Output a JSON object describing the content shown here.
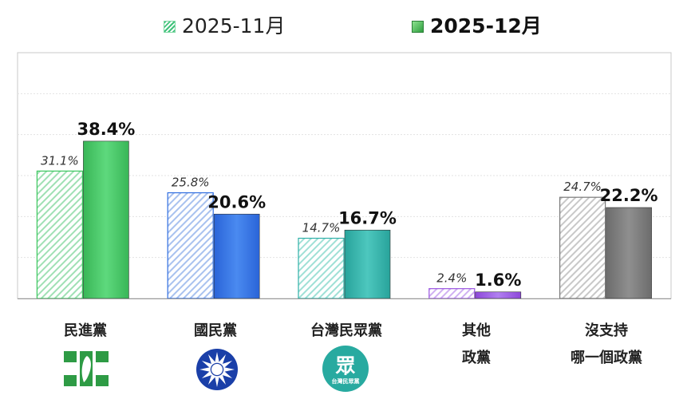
{
  "chart_data": {
    "type": "bar",
    "categories": [
      "民進黨",
      "國民黨",
      "台灣民眾黨",
      "其他\n政黨",
      "沒支持\n哪一個政黨"
    ],
    "category_lines": [
      [
        "民進黨"
      ],
      [
        "國民黨"
      ],
      [
        "台灣民眾黨"
      ],
      [
        "其他",
        "政黨"
      ],
      [
        "沒支持",
        "哪一個政黨"
      ]
    ],
    "series": [
      {
        "name": "2025-11月",
        "values": [
          31.1,
          25.8,
          14.7,
          2.4,
          24.7
        ],
        "labels": [
          "31.1%",
          "25.8%",
          "14.7%",
          "2.4%",
          "24.7%"
        ]
      },
      {
        "name": "2025-12月",
        "values": [
          38.4,
          20.6,
          16.7,
          1.6,
          22.2
        ],
        "labels": [
          "38.4%",
          "20.6%",
          "16.7%",
          "1.6%",
          "22.2%"
        ]
      }
    ],
    "ylim": [
      0,
      60
    ],
    "grid": true,
    "legend": "top",
    "colors": {
      "dpp": "#3cc75f",
      "kmt": "#2f6de0",
      "tpp": "#2fb0a8",
      "other": "#9a55e0",
      "none": "#7a7a7a"
    }
  },
  "logos": {
    "dpp": {
      "icon": "dpp-party-logo-icon",
      "color": "#2e9b45"
    },
    "kmt": {
      "icon": "kmt-party-emblem-icon",
      "color": "#1a3fa8"
    },
    "tpp": {
      "icon": "tpp-party-logo-icon",
      "color": "#28aaa0",
      "glyph": "眾",
      "text": "台灣民眾黨"
    }
  }
}
